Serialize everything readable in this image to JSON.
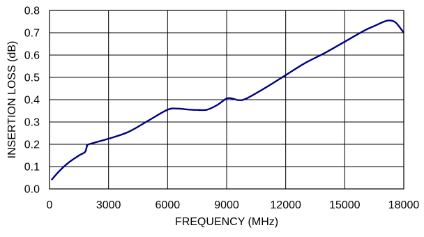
{
  "chart_data": {
    "type": "line",
    "title": "",
    "xlabel": "FREQUENCY (MHz)",
    "ylabel": "INSERTION LOSS (dB)",
    "xlim": [
      0,
      18000
    ],
    "ylim": [
      0.0,
      0.8
    ],
    "x_ticks": [
      0,
      3000,
      6000,
      9000,
      12000,
      15000,
      18000
    ],
    "x_tick_labels": [
      "0",
      "3000",
      "6000",
      "9000",
      "12000",
      "15000",
      "18000"
    ],
    "y_ticks": [
      0.0,
      0.1,
      0.2,
      0.3,
      0.4,
      0.5,
      0.6,
      0.7,
      0.8
    ],
    "y_tick_labels": [
      "0.0",
      "0.1",
      "0.2",
      "0.3",
      "0.4",
      "0.5",
      "0.6",
      "0.7",
      "0.8"
    ],
    "grid": true,
    "legend": "none",
    "series": [
      {
        "color": "#000080",
        "x": [
          100,
          500,
          1000,
          1500,
          1800,
          1900,
          2000,
          3000,
          4000,
          5000,
          6000,
          6500,
          7000,
          7500,
          8000,
          8500,
          9000,
          9300,
          9600,
          10000,
          11000,
          12000,
          13000,
          14000,
          15000,
          16000,
          16500,
          17000,
          17300,
          17600,
          18000
        ],
        "y": [
          0.04,
          0.08,
          0.12,
          0.15,
          0.165,
          0.19,
          0.2,
          0.225,
          0.255,
          0.305,
          0.355,
          0.36,
          0.356,
          0.354,
          0.355,
          0.375,
          0.405,
          0.405,
          0.398,
          0.405,
          0.455,
          0.51,
          0.565,
          0.61,
          0.66,
          0.71,
          0.73,
          0.75,
          0.755,
          0.745,
          0.7
        ]
      }
    ]
  }
}
